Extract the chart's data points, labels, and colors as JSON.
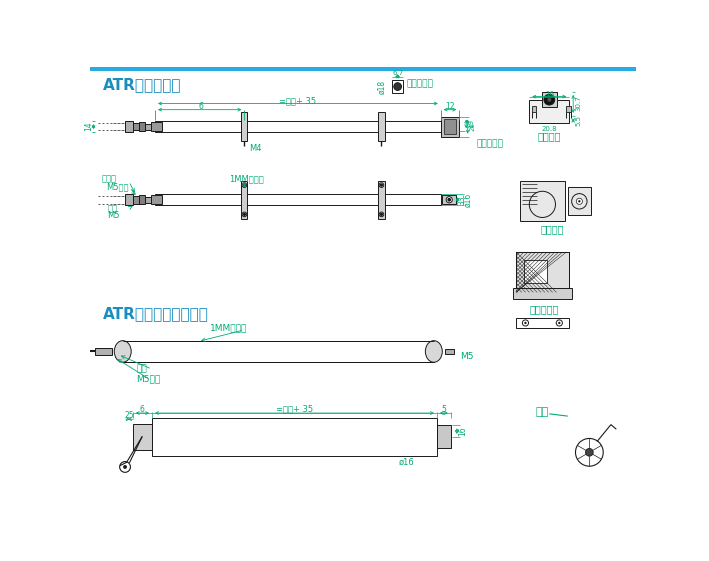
{
  "bg_color": "#ffffff",
  "border_color": "#29abe2",
  "line_color": "#1a1a1a",
  "dim_color": "#00aa77",
  "text_color_blue": "#1a8fbf",
  "dark_color": "#1a1a1a",
  "title1": "ATR安装尺寸图",
  "title2": "ATR改装型安装尺寸图",
  "labels": {
    "flat_washer": "平垫片",
    "m5_nut": "M5螺母",
    "spring": "弹介",
    "m5": "M5",
    "1mm_pad": "1MM胶垫片",
    "m4": "M4",
    "side_wire": "（侧出线）",
    "straight_wire": "（直出线）",
    "hardware_bracket": "五金支架",
    "plastic_bracket": "塑胶支架",
    "aluminum_bracket": "铝合金支架",
    "wire": "电线",
    "model_dim": "=型号+ 35"
  }
}
